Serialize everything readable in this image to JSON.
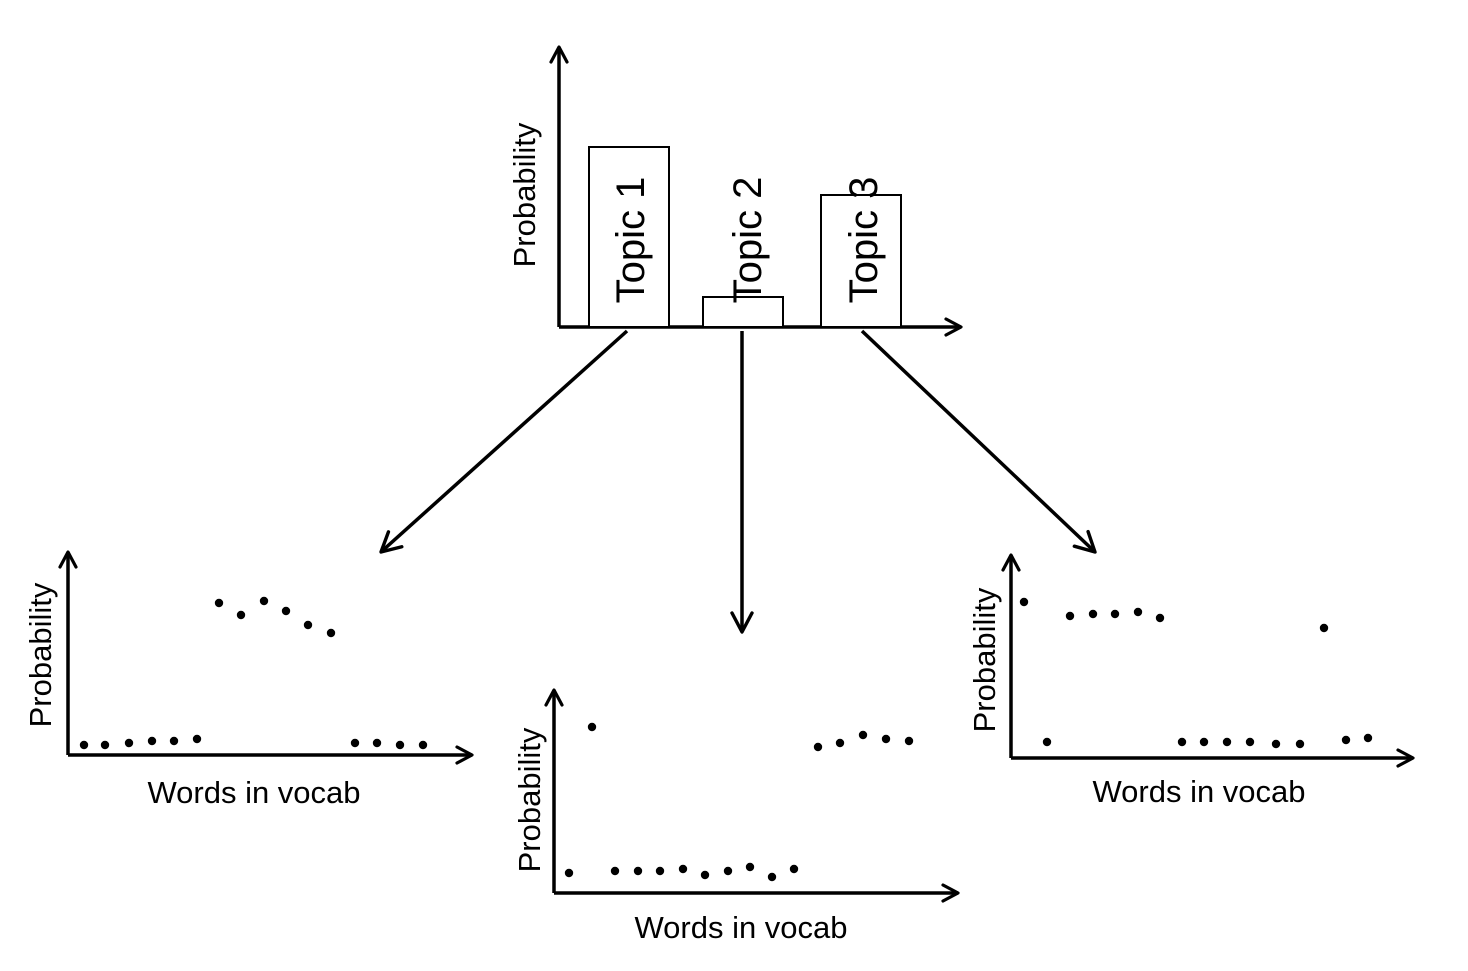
{
  "topic_chart": {
    "ylabel": "Probability",
    "bars": [
      {
        "label": "Topic 1",
        "value": 0.6
      },
      {
        "label": "Topic 2",
        "value": 0.1
      },
      {
        "label": "Topic 3",
        "value": 0.44
      }
    ]
  },
  "word_charts": [
    {
      "ylabel": "Probability",
      "xlabel": "Words in vocab",
      "points": [
        [
          1,
          0.05
        ],
        [
          2,
          0.05
        ],
        [
          3,
          0.06
        ],
        [
          4,
          0.07
        ],
        [
          5,
          0.07
        ],
        [
          6,
          0.08
        ],
        [
          7,
          0.76
        ],
        [
          8,
          0.7
        ],
        [
          9,
          0.77
        ],
        [
          10,
          0.72
        ],
        [
          11,
          0.65
        ],
        [
          12,
          0.61
        ],
        [
          13,
          0.06
        ],
        [
          14,
          0.06
        ],
        [
          15,
          0.05
        ],
        [
          16,
          0.05
        ]
      ]
    },
    {
      "ylabel": "Probability",
      "xlabel": "Words in vocab",
      "points": [
        [
          1,
          0.1
        ],
        [
          2,
          0.83
        ],
        [
          3,
          0.11
        ],
        [
          4,
          0.11
        ],
        [
          5,
          0.11
        ],
        [
          6,
          0.12
        ],
        [
          7,
          0.09
        ],
        [
          8,
          0.11
        ],
        [
          9,
          0.13
        ],
        [
          10,
          0.08
        ],
        [
          11,
          0.12
        ],
        [
          12,
          0.73
        ],
        [
          13,
          0.75
        ],
        [
          14,
          0.79
        ],
        [
          15,
          0.77
        ],
        [
          16,
          0.76
        ]
      ]
    },
    {
      "ylabel": "Probability",
      "xlabel": "Words in vocab",
      "points": [
        [
          1,
          0.78
        ],
        [
          2,
          0.08
        ],
        [
          3,
          0.71
        ],
        [
          4,
          0.72
        ],
        [
          5,
          0.72
        ],
        [
          6,
          0.73
        ],
        [
          7,
          0.7
        ],
        [
          8,
          0.08
        ],
        [
          9,
          0.08
        ],
        [
          10,
          0.08
        ],
        [
          11,
          0.08
        ],
        [
          12,
          0.07
        ],
        [
          13,
          0.07
        ],
        [
          14,
          0.65
        ],
        [
          15,
          0.09
        ],
        [
          16,
          0.1
        ]
      ]
    }
  ]
}
